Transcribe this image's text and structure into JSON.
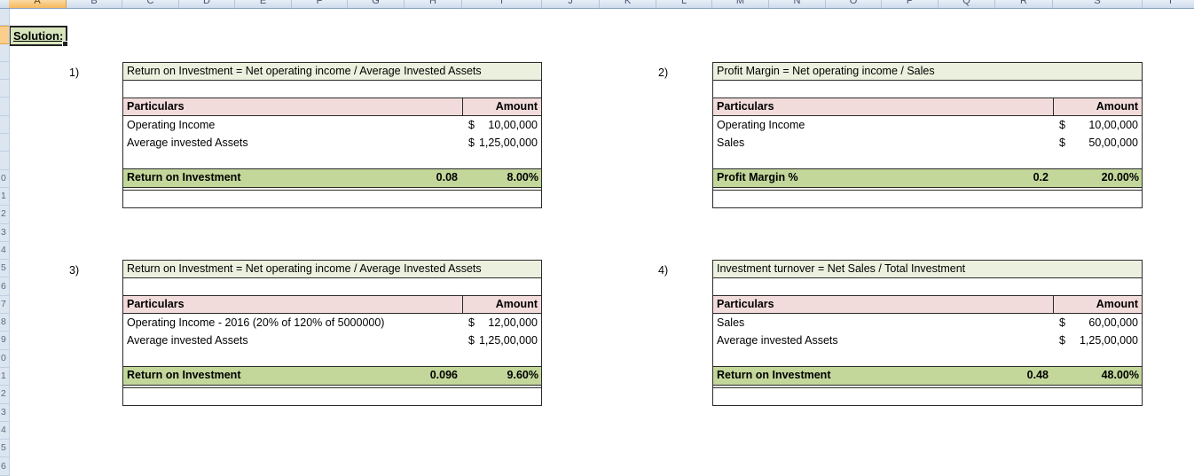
{
  "spreadsheet": {
    "column_headers": [
      "A",
      "B",
      "C",
      "D",
      "E",
      "F",
      "G",
      "H",
      "I",
      "J",
      "K",
      "L",
      "M",
      "N",
      "O",
      "P",
      "Q",
      "R",
      "S",
      "T"
    ],
    "row_digits": [
      "",
      "",
      "",
      "",
      "",
      "",
      "",
      "",
      "",
      "0",
      "1",
      "2",
      "3",
      "4",
      "5",
      "6",
      "7",
      "8",
      "9",
      "0",
      "1",
      "2",
      "3",
      "4",
      "5",
      "6",
      ""
    ],
    "selection": {
      "column": "A",
      "row": 2
    }
  },
  "solution": {
    "label": "Solution:"
  },
  "tables": [
    {
      "number": "1)",
      "title": "Return on Investment = Net operating income / Average Invested Assets",
      "columns": {
        "particulars": "Particulars",
        "amount": "Amount"
      },
      "rows": [
        {
          "particulars": "Operating Income",
          "currency": "$",
          "amount": "10,00,000"
        },
        {
          "particulars": "Average invested Assets",
          "currency": "$",
          "amount": "1,25,00,000"
        }
      ],
      "result": {
        "label": "Return on Investment",
        "ratio": "0.08",
        "percent": "8.00%"
      }
    },
    {
      "number": "2)",
      "title": "Profit Margin = Net operating income / Sales",
      "columns": {
        "particulars": "Particulars",
        "amount": "Amount"
      },
      "rows": [
        {
          "particulars": "Operating Income",
          "currency": "$",
          "amount": "10,00,000"
        },
        {
          "particulars": "Sales",
          "currency": "$",
          "amount": "50,00,000"
        }
      ],
      "result": {
        "label": "Profit Margin %",
        "ratio": "0.2",
        "percent": "20.00%"
      }
    },
    {
      "number": "3)",
      "title": "Return on Investment = Net operating income / Average Invested Assets",
      "columns": {
        "particulars": "Particulars",
        "amount": "Amount"
      },
      "rows": [
        {
          "particulars": "Operating Income - 2016 (20% of 120% of 5000000)",
          "currency": "$",
          "amount": "12,00,000"
        },
        {
          "particulars": "Average invested Assets",
          "currency": "$",
          "amount": "1,25,00,000"
        }
      ],
      "result": {
        "label": "Return on Investment",
        "ratio": "0.096",
        "percent": "9.60%"
      }
    },
    {
      "number": "4)",
      "title": "Investment turnover = Net Sales / Total Investment",
      "columns": {
        "particulars": "Particulars",
        "amount": "Amount"
      },
      "rows": [
        {
          "particulars": "Sales",
          "currency": "$",
          "amount": "60,00,000"
        },
        {
          "particulars": "Average invested Assets",
          "currency": "$",
          "amount": "1,25,00,000"
        }
      ],
      "result": {
        "label": "Return on Investment",
        "ratio": "0.48",
        "percent": "48.00%"
      }
    }
  ],
  "colors": {
    "title_row_bg": "#ebf1de",
    "header_row_bg": "#f2dcdb",
    "result_row_bg": "#c4d79b",
    "solution_cell_bg": "#d7e4bc",
    "selected_header_bg": "#f6b95e",
    "header_strip_bg": "#cfdcee",
    "row_strip_bg": "#dce6f1",
    "table_border": "#2b2b2b"
  }
}
